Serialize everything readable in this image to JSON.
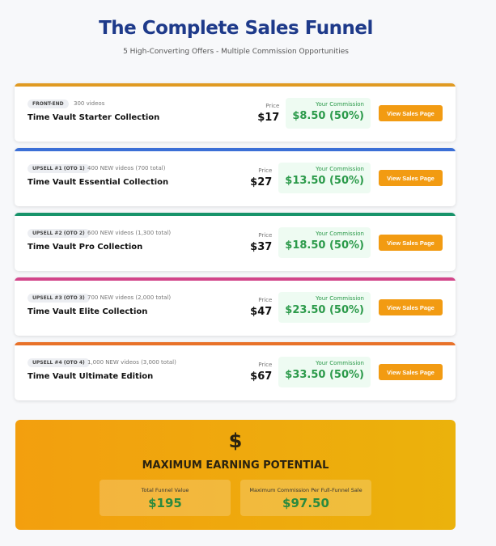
{
  "header": {
    "title": "The Complete Sales Funnel",
    "subtitle": "5 High-Converting Offers - Multiple Commission Opportunities"
  },
  "labels": {
    "price": "Price",
    "commission": "Your Commission",
    "button": "View Sales Page"
  },
  "offers": [
    {
      "badge": "FRONT-END",
      "videos": "300 videos",
      "name": "Time Vault Starter Collection",
      "price": "$17",
      "commission": "$8.50 (50%)",
      "color": "#e09a22"
    },
    {
      "badge": "UPSELL #1 (OTO 1)",
      "videos": "400 NEW videos (700 total)",
      "name": "Time Vault Essential Collection",
      "price": "$27",
      "commission": "$13.50 (50%)",
      "color": "#3b6fd6"
    },
    {
      "badge": "UPSELL #2 (OTO 2)",
      "videos": "600 NEW videos (1,300 total)",
      "name": "Time Vault Pro Collection",
      "price": "$37",
      "commission": "$18.50 (50%)",
      "color": "#17936a"
    },
    {
      "badge": "UPSELL #3 (OTO 3)",
      "videos": "700 NEW videos (2,000 total)",
      "name": "Time Vault Elite Collection",
      "price": "$47",
      "commission": "$23.50 (50%)",
      "color": "#d2458a"
    },
    {
      "badge": "UPSELL #4 (OTO 4)",
      "videos": "1,000 NEW videos (3,000 total)",
      "name": "Time Vault Ultimate Edition",
      "price": "$67",
      "commission": "$33.50 (50%)",
      "color": "#e8722a"
    }
  ],
  "summary": {
    "icon": "dollar-icon",
    "symbol": "$",
    "title": "MAXIMUM EARNING POTENTIAL",
    "total_label": "Total Funnel Value",
    "total_value": "$195",
    "max_label": "Maximum Commission Per Full-Funnel Sale",
    "max_value": "$97.50"
  }
}
